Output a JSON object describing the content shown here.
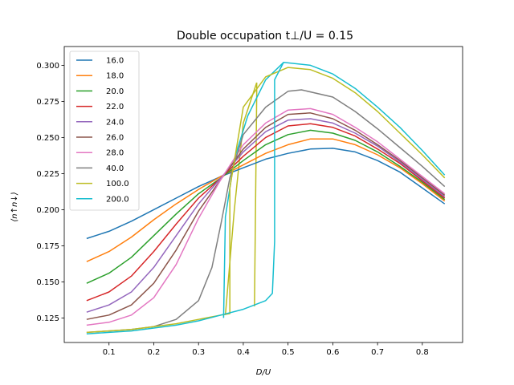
{
  "chart_data": {
    "type": "line",
    "title": "Double occupation t⊥/U = 0.15",
    "xlabel": "D/U",
    "ylabel": "⟨n↑n↓⟩",
    "xlim": [
      0.0,
      0.89
    ],
    "ylim": [
      0.108,
      0.313
    ],
    "xticks": [
      0.1,
      0.2,
      0.3,
      0.4,
      0.5,
      0.6,
      0.7,
      0.8
    ],
    "yticks": [
      0.125,
      0.15,
      0.175,
      0.2,
      0.225,
      0.25,
      0.275,
      0.3
    ],
    "xtick_labels": [
      "0.1",
      "0.2",
      "0.3",
      "0.4",
      "0.5",
      "0.6",
      "0.7",
      "0.8"
    ],
    "ytick_labels": [
      "0.125",
      "0.150",
      "0.175",
      "0.200",
      "0.225",
      "0.250",
      "0.275",
      "0.300"
    ],
    "legend_position": "top-left",
    "grid": false,
    "series": [
      {
        "name": "16.0",
        "color": "#1f77b4",
        "points": [
          [
            0.05,
            0.18
          ],
          [
            0.1,
            0.185
          ],
          [
            0.15,
            0.192
          ],
          [
            0.2,
            0.2
          ],
          [
            0.25,
            0.208
          ],
          [
            0.3,
            0.216
          ],
          [
            0.35,
            0.223
          ],
          [
            0.4,
            0.229
          ],
          [
            0.45,
            0.235
          ],
          [
            0.5,
            0.239
          ],
          [
            0.55,
            0.242
          ],
          [
            0.6,
            0.2425
          ],
          [
            0.65,
            0.24
          ],
          [
            0.7,
            0.234
          ],
          [
            0.75,
            0.226
          ],
          [
            0.8,
            0.215
          ],
          [
            0.85,
            0.204
          ]
        ]
      },
      {
        "name": "18.0",
        "color": "#ff7f0e",
        "points": [
          [
            0.05,
            0.164
          ],
          [
            0.1,
            0.171
          ],
          [
            0.15,
            0.181
          ],
          [
            0.2,
            0.193
          ],
          [
            0.25,
            0.204
          ],
          [
            0.3,
            0.214
          ],
          [
            0.35,
            0.223
          ],
          [
            0.4,
            0.231
          ],
          [
            0.45,
            0.239
          ],
          [
            0.5,
            0.245
          ],
          [
            0.55,
            0.249
          ],
          [
            0.6,
            0.249
          ],
          [
            0.65,
            0.245
          ],
          [
            0.7,
            0.238
          ],
          [
            0.75,
            0.229
          ],
          [
            0.8,
            0.218
          ],
          [
            0.85,
            0.206
          ]
        ]
      },
      {
        "name": "20.0",
        "color": "#2ca02c",
        "points": [
          [
            0.05,
            0.149
          ],
          [
            0.1,
            0.156
          ],
          [
            0.15,
            0.167
          ],
          [
            0.2,
            0.182
          ],
          [
            0.25,
            0.197
          ],
          [
            0.3,
            0.211
          ],
          [
            0.35,
            0.222
          ],
          [
            0.4,
            0.234
          ],
          [
            0.45,
            0.245
          ],
          [
            0.5,
            0.252
          ],
          [
            0.55,
            0.255
          ],
          [
            0.6,
            0.253
          ],
          [
            0.65,
            0.248
          ],
          [
            0.7,
            0.24
          ],
          [
            0.75,
            0.23
          ],
          [
            0.8,
            0.219
          ],
          [
            0.85,
            0.207
          ]
        ]
      },
      {
        "name": "22.0",
        "color": "#d62728",
        "points": [
          [
            0.05,
            0.137
          ],
          [
            0.1,
            0.143
          ],
          [
            0.15,
            0.154
          ],
          [
            0.2,
            0.171
          ],
          [
            0.25,
            0.19
          ],
          [
            0.3,
            0.208
          ],
          [
            0.35,
            0.222
          ],
          [
            0.4,
            0.237
          ],
          [
            0.45,
            0.25
          ],
          [
            0.5,
            0.258
          ],
          [
            0.55,
            0.2595
          ],
          [
            0.6,
            0.257
          ],
          [
            0.65,
            0.251
          ],
          [
            0.7,
            0.242
          ],
          [
            0.75,
            0.232
          ],
          [
            0.8,
            0.22
          ],
          [
            0.85,
            0.208
          ]
        ]
      },
      {
        "name": "24.0",
        "color": "#9467bd",
        "points": [
          [
            0.05,
            0.129
          ],
          [
            0.1,
            0.134
          ],
          [
            0.15,
            0.143
          ],
          [
            0.2,
            0.16
          ],
          [
            0.25,
            0.182
          ],
          [
            0.3,
            0.204
          ],
          [
            0.35,
            0.222
          ],
          [
            0.4,
            0.24
          ],
          [
            0.45,
            0.254
          ],
          [
            0.5,
            0.262
          ],
          [
            0.55,
            0.263
          ],
          [
            0.6,
            0.26
          ],
          [
            0.65,
            0.253
          ],
          [
            0.7,
            0.244
          ],
          [
            0.75,
            0.233
          ],
          [
            0.8,
            0.221
          ],
          [
            0.85,
            0.209
          ]
        ]
      },
      {
        "name": "26.0",
        "color": "#8c564b",
        "points": [
          [
            0.05,
            0.124
          ],
          [
            0.1,
            0.127
          ],
          [
            0.15,
            0.134
          ],
          [
            0.2,
            0.149
          ],
          [
            0.25,
            0.172
          ],
          [
            0.3,
            0.199
          ],
          [
            0.35,
            0.221
          ],
          [
            0.4,
            0.242
          ],
          [
            0.45,
            0.257
          ],
          [
            0.5,
            0.266
          ],
          [
            0.55,
            0.267
          ],
          [
            0.6,
            0.263
          ],
          [
            0.65,
            0.255
          ],
          [
            0.7,
            0.245
          ],
          [
            0.75,
            0.234
          ],
          [
            0.8,
            0.222
          ],
          [
            0.85,
            0.21
          ]
        ]
      },
      {
        "name": "28.0",
        "color": "#e377c2",
        "points": [
          [
            0.05,
            0.12
          ],
          [
            0.1,
            0.122
          ],
          [
            0.15,
            0.127
          ],
          [
            0.2,
            0.139
          ],
          [
            0.25,
            0.162
          ],
          [
            0.3,
            0.194
          ],
          [
            0.35,
            0.221
          ],
          [
            0.4,
            0.245
          ],
          [
            0.45,
            0.26
          ],
          [
            0.5,
            0.269
          ],
          [
            0.55,
            0.27
          ],
          [
            0.6,
            0.266
          ],
          [
            0.65,
            0.257
          ],
          [
            0.7,
            0.247
          ],
          [
            0.75,
            0.235
          ],
          [
            0.8,
            0.223
          ],
          [
            0.85,
            0.211
          ]
        ]
      },
      {
        "name": "40.0",
        "color": "#7f7f7f",
        "points": [
          [
            0.05,
            0.115
          ],
          [
            0.1,
            0.116
          ],
          [
            0.15,
            0.117
          ],
          [
            0.2,
            0.119
          ],
          [
            0.25,
            0.124
          ],
          [
            0.3,
            0.137
          ],
          [
            0.33,
            0.16
          ],
          [
            0.35,
            0.19
          ],
          [
            0.37,
            0.222
          ],
          [
            0.4,
            0.252
          ],
          [
            0.45,
            0.271
          ],
          [
            0.5,
            0.282
          ],
          [
            0.53,
            0.283
          ],
          [
            0.6,
            0.278
          ],
          [
            0.65,
            0.268
          ],
          [
            0.7,
            0.256
          ],
          [
            0.75,
            0.243
          ],
          [
            0.8,
            0.23
          ],
          [
            0.85,
            0.216
          ]
        ]
      },
      {
        "name": "100.0",
        "color": "#bcbd22",
        "points": [
          [
            0.05,
            0.115
          ],
          [
            0.1,
            0.116
          ],
          [
            0.15,
            0.117
          ],
          [
            0.2,
            0.119
          ],
          [
            0.25,
            0.121
          ],
          [
            0.3,
            0.124
          ],
          [
            0.35,
            0.127
          ],
          [
            0.37,
            0.128
          ],
          [
            0.37,
            0.215
          ],
          [
            0.4,
            0.271
          ],
          [
            0.45,
            0.292
          ],
          [
            0.5,
            0.2985
          ],
          [
            0.55,
            0.297
          ],
          [
            0.6,
            0.291
          ],
          [
            0.65,
            0.281
          ],
          [
            0.7,
            0.268
          ],
          [
            0.75,
            0.253
          ],
          [
            0.8,
            0.238
          ],
          [
            0.85,
            0.222
          ]
        ]
      },
      {
        "name": "200.0",
        "color": "#17becf",
        "points": [
          [
            0.05,
            0.114
          ],
          [
            0.1,
            0.115
          ],
          [
            0.15,
            0.116
          ],
          [
            0.2,
            0.118
          ],
          [
            0.25,
            0.12
          ],
          [
            0.3,
            0.123
          ],
          [
            0.35,
            0.127
          ],
          [
            0.4,
            0.131
          ],
          [
            0.45,
            0.137
          ],
          [
            0.465,
            0.142
          ],
          [
            0.47,
            0.178
          ],
          [
            0.47,
            0.29
          ],
          [
            0.49,
            0.302
          ],
          [
            0.55,
            0.3
          ],
          [
            0.6,
            0.294
          ],
          [
            0.65,
            0.284
          ],
          [
            0.7,
            0.271
          ],
          [
            0.75,
            0.257
          ],
          [
            0.8,
            0.241
          ],
          [
            0.85,
            0.224
          ]
        ]
      }
    ],
    "extra_segments": [
      {
        "series": "100.0",
        "color": "#bcbd22",
        "points": [
          [
            0.36,
            0.127
          ],
          [
            0.38,
            0.2
          ],
          [
            0.4,
            0.26
          ],
          [
            0.43,
            0.288
          ]
        ]
      },
      {
        "series": "100.0",
        "color": "#bcbd22",
        "points": [
          [
            0.43,
            0.288
          ],
          [
            0.43,
            0.28
          ],
          [
            0.425,
            0.133
          ]
        ]
      },
      {
        "series": "200.0",
        "color": "#17becf",
        "points": [
          [
            0.356,
            0.125
          ],
          [
            0.36,
            0.195
          ],
          [
            0.38,
            0.235
          ],
          [
            0.41,
            0.265
          ],
          [
            0.45,
            0.29
          ],
          [
            0.49,
            0.302
          ]
        ]
      }
    ]
  }
}
